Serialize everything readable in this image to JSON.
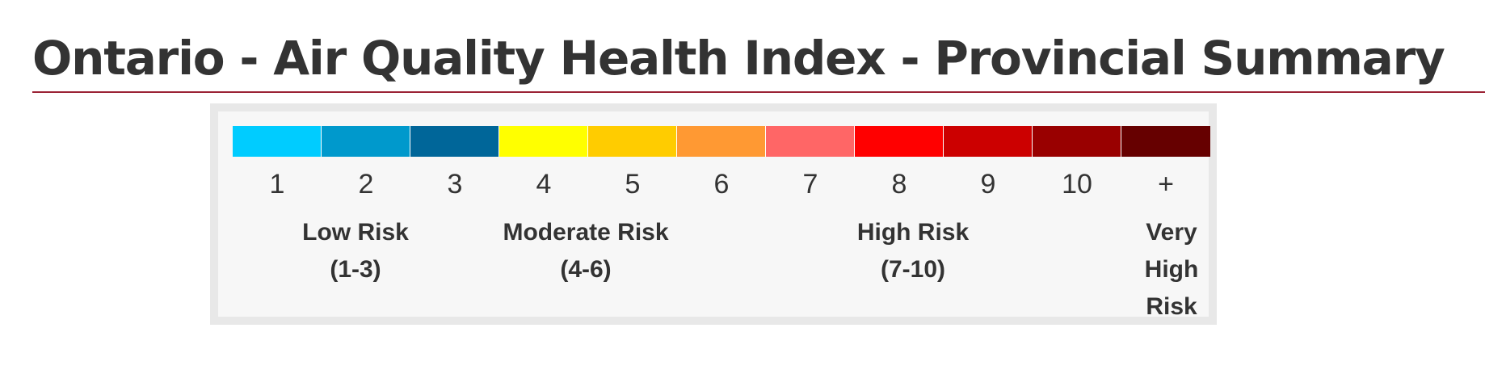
{
  "page": {
    "title": "Ontario - Air Quality Health Index - Provincial Summary"
  },
  "legend": {
    "scale": [
      {
        "label": "1",
        "color": "#00ccff"
      },
      {
        "label": "2",
        "color": "#0099cc"
      },
      {
        "label": "3",
        "color": "#006699"
      },
      {
        "label": "4",
        "color": "#ffff00"
      },
      {
        "label": "5",
        "color": "#ffcc00"
      },
      {
        "label": "6",
        "color": "#ff9933"
      },
      {
        "label": "7",
        "color": "#ff6666"
      },
      {
        "label": "8",
        "color": "#ff0000"
      },
      {
        "label": "9",
        "color": "#cc0000"
      },
      {
        "label": "10",
        "color": "#990000"
      },
      {
        "label": "+",
        "color": "#660000"
      }
    ],
    "risk_categories": {
      "low": {
        "name": "Low Risk",
        "range": "(1-3)"
      },
      "moderate": {
        "name": "Moderate Risk",
        "range": "(4-6)"
      },
      "high": {
        "name": "High Risk",
        "range": "(7-10)"
      },
      "very_high": {
        "line1": "Very",
        "line2": "High",
        "line3": "Risk"
      }
    }
  },
  "colors": {
    "title_text": "#333333",
    "title_rule": "#9b2335",
    "legend_background": "#f7f7f7",
    "legend_border": "#e8e8e8"
  }
}
